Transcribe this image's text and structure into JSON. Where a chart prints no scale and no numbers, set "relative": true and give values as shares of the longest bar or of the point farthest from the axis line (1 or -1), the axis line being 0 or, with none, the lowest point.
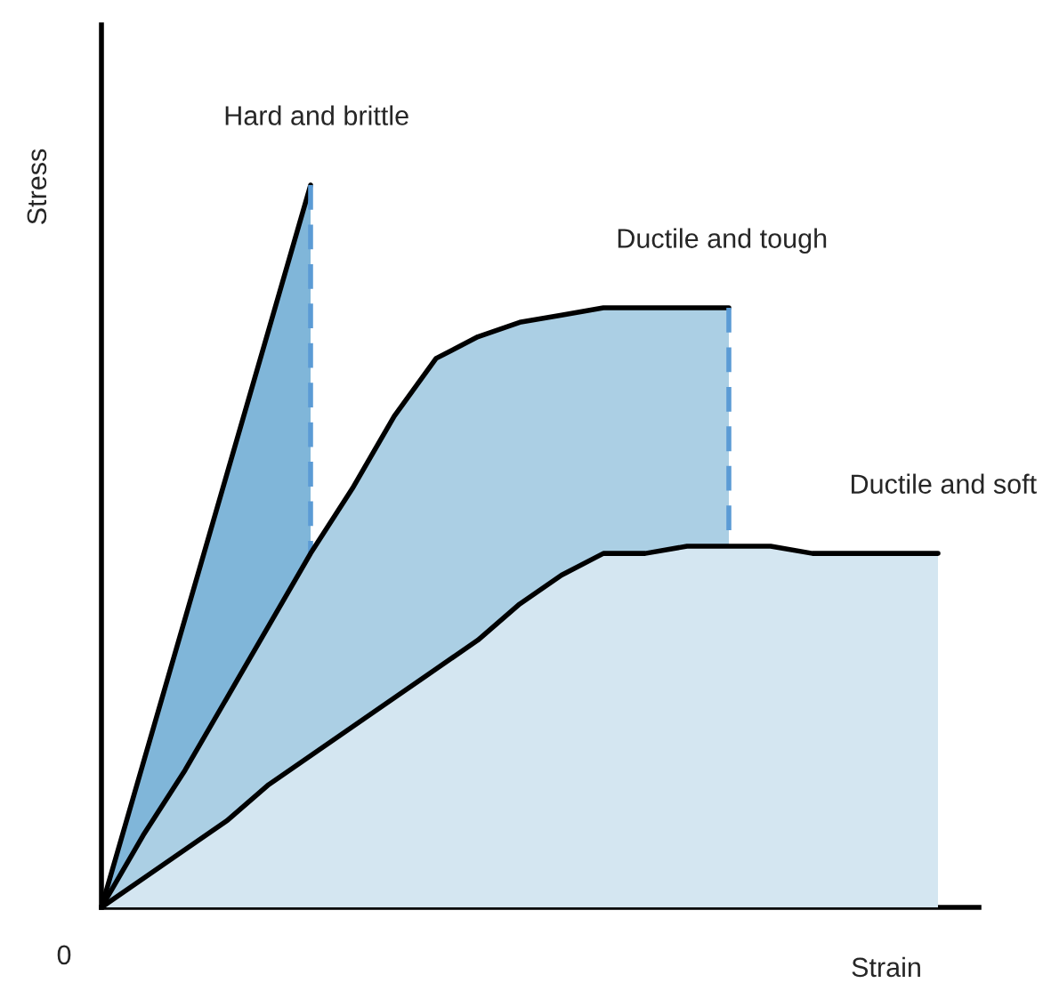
{
  "chart_data": {
    "type": "area",
    "relative": true,
    "xlabel": "Strain",
    "ylabel": "Stress",
    "annotations": [
      "0"
    ],
    "categories": [
      null,
      null,
      null,
      null,
      null,
      null,
      null,
      null,
      null,
      null,
      null,
      null,
      null,
      null,
      null,
      null,
      null,
      null,
      null,
      null,
      null
    ],
    "series": [
      {
        "name": "Hard and brittle",
        "color": "#80b6d9",
        "values": [
          0,
          0.2,
          0.4,
          0.6,
          0.8,
          1.0,
          null,
          null,
          null,
          null,
          null,
          null,
          null,
          null,
          null,
          null,
          null,
          null,
          null,
          null,
          null
        ]
      },
      {
        "name": "Ductile and tough",
        "color": "#abcfe4",
        "values": [
          0,
          0.1,
          0.19,
          0.29,
          0.39,
          0.49,
          0.58,
          0.68,
          0.76,
          0.79,
          0.81,
          0.82,
          0.83,
          0.83,
          0.83,
          0.83,
          null,
          null,
          null,
          null,
          null
        ]
      },
      {
        "name": "Ductile and soft",
        "color": "#d4e6f1",
        "values": [
          0,
          0.04,
          0.08,
          0.12,
          0.17,
          0.21,
          0.25,
          0.29,
          0.33,
          0.37,
          0.42,
          0.46,
          0.49,
          0.49,
          0.5,
          0.5,
          0.5,
          0.49,
          0.49,
          0.49,
          0.49
        ]
      }
    ]
  }
}
